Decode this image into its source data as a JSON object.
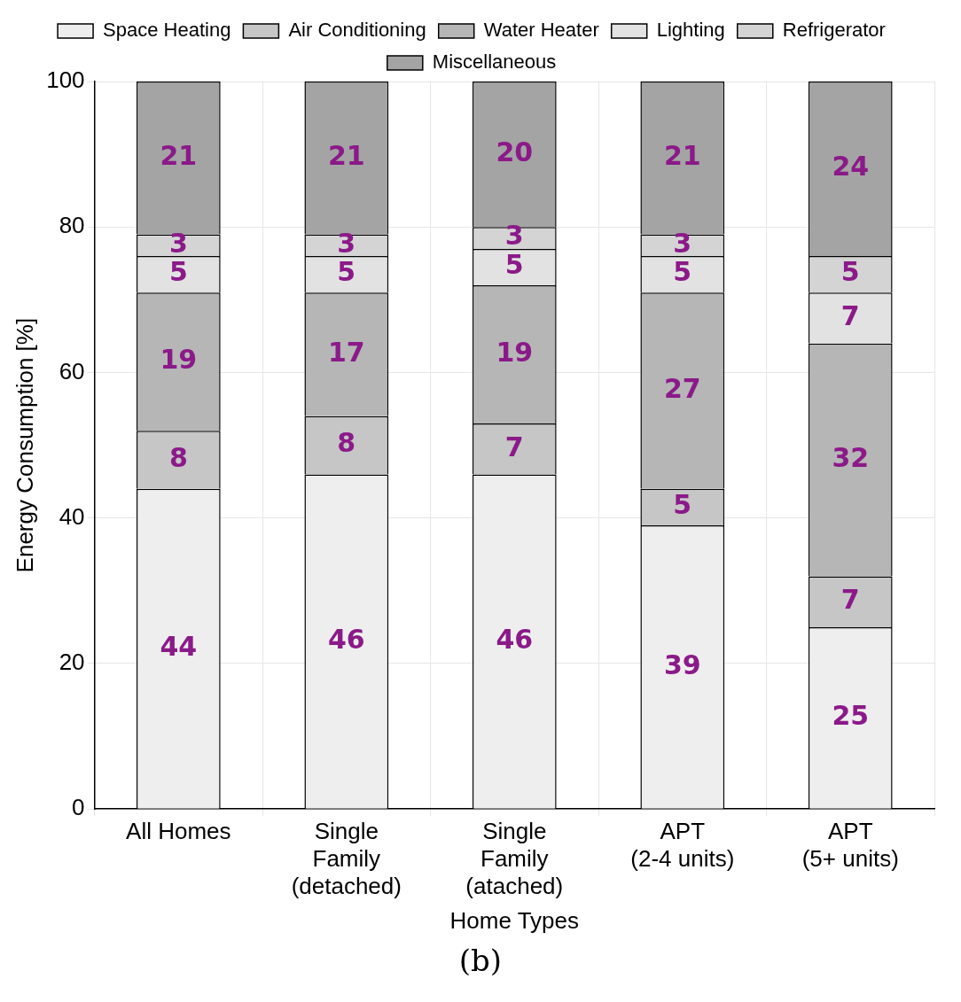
{
  "chart_data": {
    "type": "bar",
    "stacked": true,
    "xlabel": "Home Types",
    "ylabel": "Energy Consumption [%]",
    "categories": [
      "All Homes",
      "Single\nFamily\n(detached)",
      "Single\nFamily\n(atached)",
      "APT\n(2-4 units)",
      "APT\n(5+ units)"
    ],
    "series": [
      {
        "name": "Space Heating",
        "color": "#eeeeee",
        "values": [
          44,
          46,
          46,
          39,
          25
        ]
      },
      {
        "name": "Air Conditioning",
        "color": "#c6c6c6",
        "values": [
          8,
          8,
          7,
          5,
          7
        ]
      },
      {
        "name": "Water Heater",
        "color": "#b6b6b6",
        "values": [
          19,
          17,
          19,
          27,
          32
        ]
      },
      {
        "name": "Lighting",
        "color": "#e2e2e2",
        "values": [
          5,
          5,
          5,
          5,
          7
        ]
      },
      {
        "name": "Refrigerator",
        "color": "#d4d4d4",
        "values": [
          3,
          3,
          3,
          3,
          5
        ]
      },
      {
        "name": "Miscellaneous",
        "color": "#a4a4a4",
        "values": [
          21,
          21,
          20,
          21,
          24
        ]
      }
    ],
    "ylim": [
      0,
      100
    ],
    "yticks": [
      0,
      20,
      40,
      60,
      80,
      100
    ],
    "grid": true,
    "legend": "top",
    "data_labels": true,
    "annotations": [
      "(b)"
    ]
  }
}
